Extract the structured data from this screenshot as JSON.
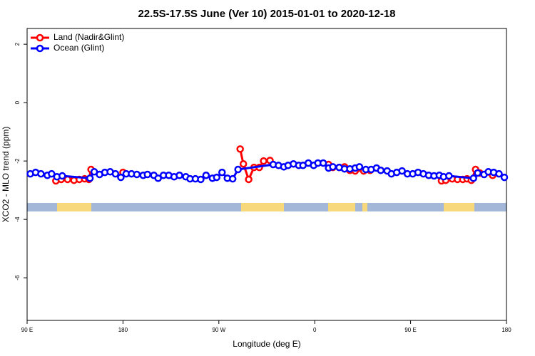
{
  "chart_data": {
    "type": "line",
    "title": "22.5S-17.5S June (Ver 10)   2015-01-01 to 2020-12-18",
    "x_label": "Longitude (deg E)",
    "y_label": "XCO2 - MLO trend (ppm)",
    "xlim": [
      90,
      540
    ],
    "ylim": [
      -7.46,
      2.54
    ],
    "xticks": [
      {
        "value": 90,
        "label": "90 E"
      },
      180,
      {
        "value": 270,
        "label": "90 W"
      },
      {
        "value": 360,
        "label": "0"
      },
      {
        "value": 450,
        "label": "90 E"
      },
      {
        "value": 540,
        "label": "180"
      }
    ],
    "yticks": [
      2,
      0,
      -2,
      -4,
      -6
    ],
    "legend": "top-left",
    "series": [
      {
        "name": "Land (Nadir&Glint)",
        "color": "#ff0000",
        "x": [
          117,
          122,
          128,
          134,
          139,
          144,
          148,
          150,
          null,
          180,
          null,
          290,
          293,
          298,
          303,
          308,
          312,
          318,
          null,
          373,
          377,
          383,
          388,
          393,
          398,
          402,
          406,
          412,
          null,
          479,
          483,
          489,
          494,
          499,
          503,
          507,
          511,
          515,
          527
        ],
        "values": [
          -2.68,
          -2.63,
          -2.63,
          -2.66,
          -2.63,
          -2.61,
          -2.63,
          -2.29,
          null,
          -2.39,
          null,
          -1.59,
          -2.1,
          -2.63,
          -2.22,
          -2.22,
          -2.0,
          -1.98,
          null,
          -2.12,
          -2.22,
          -2.22,
          -2.2,
          -2.32,
          -2.34,
          -2.24,
          -2.34,
          -2.32,
          null,
          -2.68,
          -2.66,
          -2.61,
          -2.63,
          -2.63,
          -2.61,
          -2.66,
          -2.29,
          -2.41,
          -2.49
        ]
      },
      {
        "name": "Ocean (Glint)",
        "color": "#0000ff",
        "x": [
          93,
          98,
          103,
          109,
          113,
          118,
          123,
          149,
          153,
          158,
          163,
          168,
          173,
          178,
          183,
          188,
          193,
          199,
          203,
          209,
          213,
          218,
          223,
          228,
          233,
          239,
          243,
          248,
          253,
          258,
          264,
          268,
          273,
          278,
          283,
          288,
          321,
          326,
          331,
          335,
          340,
          345,
          349,
          354,
          359,
          363,
          368,
          373,
          377,
          383,
          388,
          393,
          398,
          402,
          408,
          413,
          418,
          422,
          428,
          432,
          437,
          442,
          447,
          452,
          457,
          462,
          467,
          472,
          477,
          481,
          486,
          509,
          513,
          519,
          523,
          528,
          533,
          538
        ],
        "values": [
          -2.44,
          -2.39,
          -2.44,
          -2.49,
          -2.44,
          -2.54,
          -2.51,
          -2.59,
          -2.37,
          -2.46,
          -2.39,
          -2.37,
          -2.44,
          -2.56,
          -2.44,
          -2.44,
          -2.46,
          -2.49,
          -2.46,
          -2.49,
          -2.59,
          -2.49,
          -2.49,
          -2.54,
          -2.49,
          -2.54,
          -2.61,
          -2.61,
          -2.63,
          -2.49,
          -2.59,
          -2.56,
          -2.39,
          -2.59,
          -2.61,
          -2.29,
          -2.12,
          -2.15,
          -2.2,
          -2.15,
          -2.1,
          -2.15,
          -2.15,
          -2.07,
          -2.15,
          -2.07,
          -2.07,
          -2.24,
          -2.2,
          -2.22,
          -2.27,
          -2.27,
          -2.24,
          -2.2,
          -2.29,
          -2.29,
          -2.24,
          -2.32,
          -2.34,
          -2.44,
          -2.39,
          -2.34,
          -2.44,
          -2.44,
          -2.39,
          -2.44,
          -2.49,
          -2.51,
          -2.49,
          -2.54,
          -2.51,
          -2.59,
          -2.41,
          -2.46,
          -2.37,
          -2.39,
          -2.44,
          -2.56
        ]
      }
    ]
  }
}
